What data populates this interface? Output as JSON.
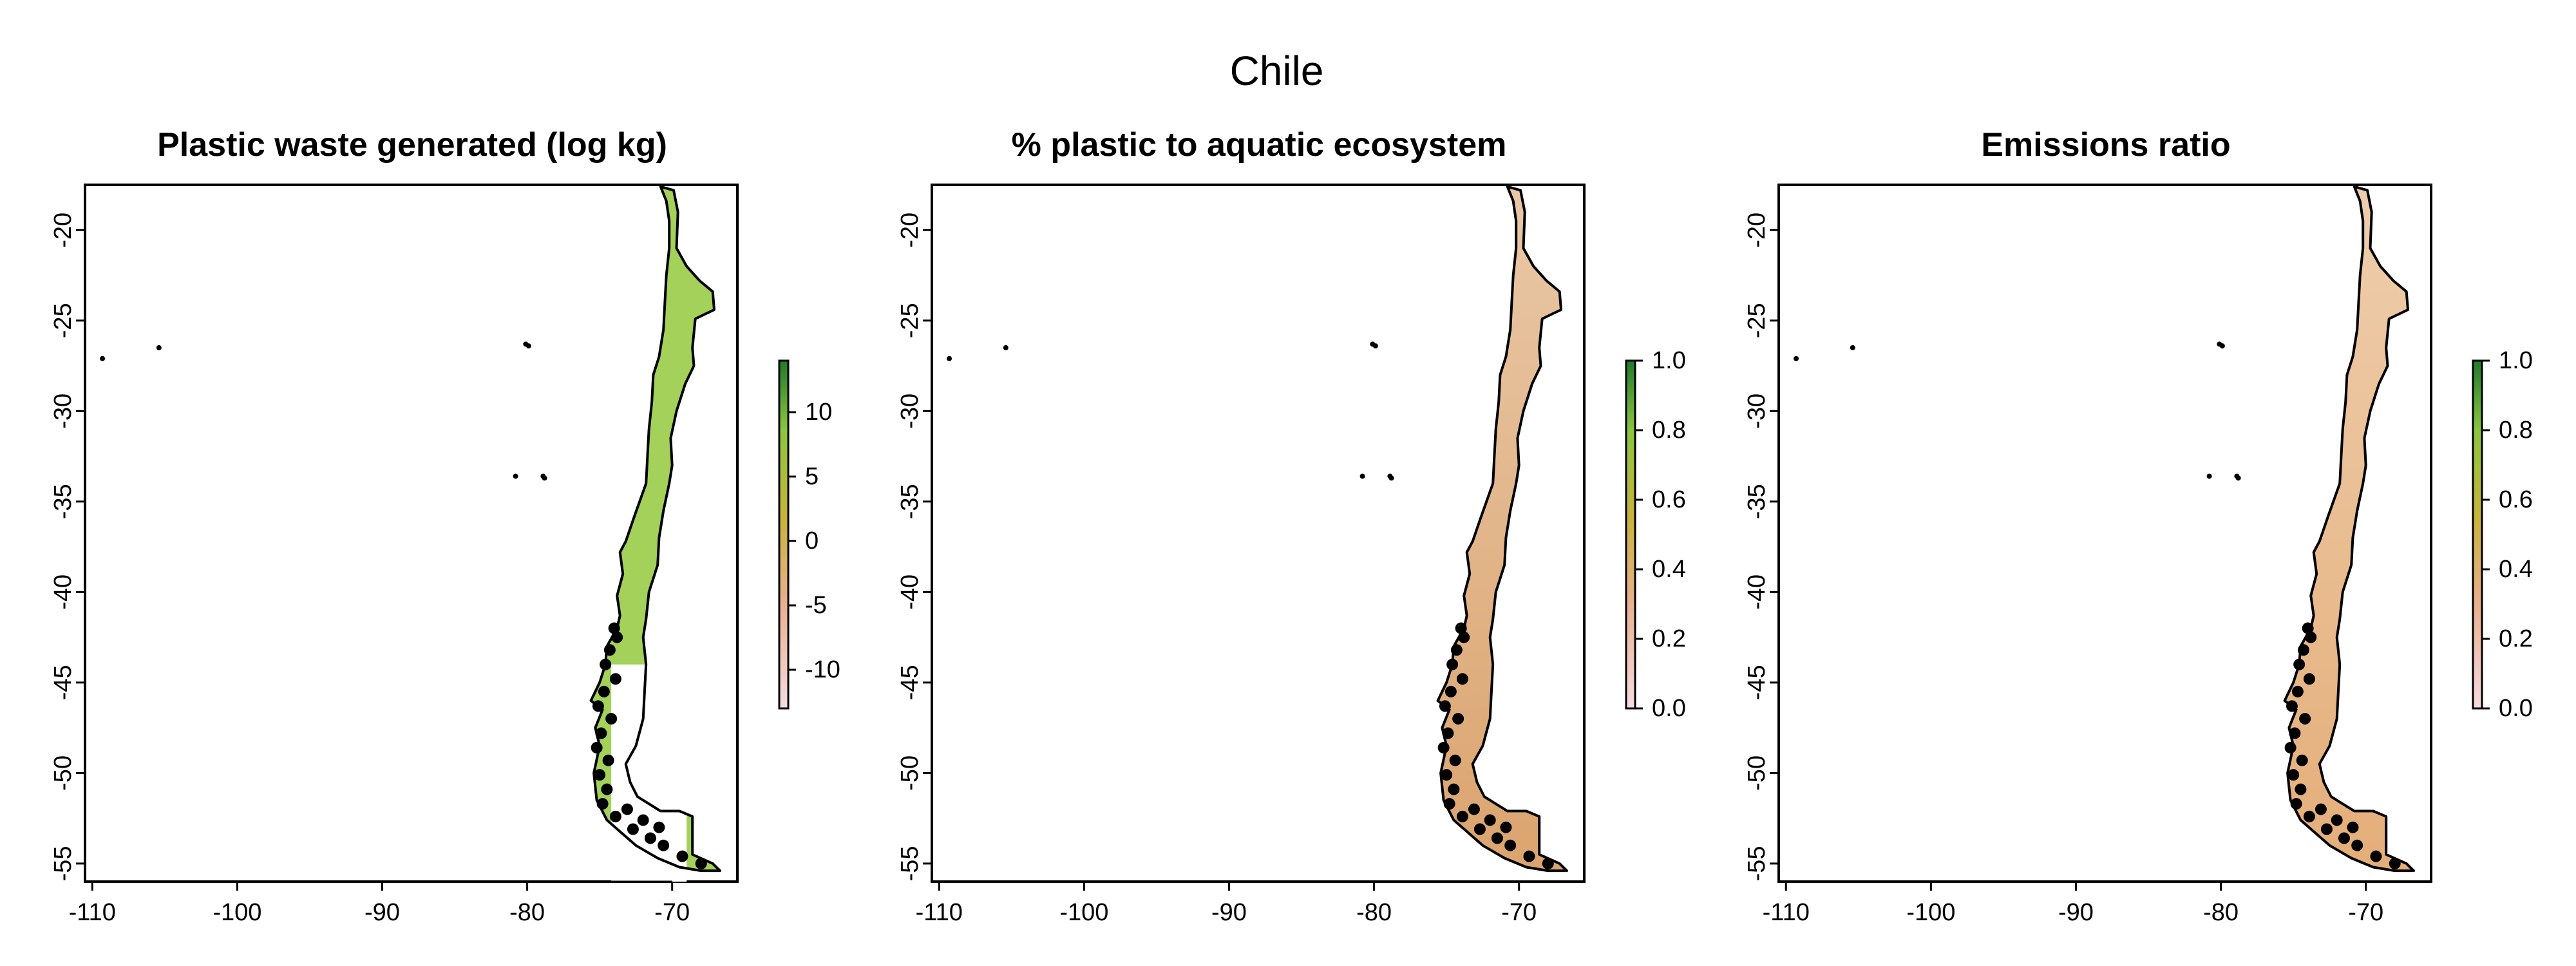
{
  "figure": {
    "title": "Chile"
  },
  "colors": {
    "outline": "#000000",
    "colorbar_low": "#f6dbe0",
    "colorbar_mid_low": "#e9b08f",
    "colorbar_mid": "#c8b33b",
    "colorbar_high": "#8bc53f",
    "colorbar_top": "#1f7a2a",
    "panel1_fill": "#93c93d",
    "panel2_fill": "#d79a5f",
    "panel3_fill": "#e1a56a"
  },
  "panels": [
    {
      "title": "Plastic waste generated (log kg)",
      "legend": {
        "ticks": [
          "10",
          "5",
          "0",
          "-5",
          "-10"
        ],
        "values": [
          10,
          5,
          0,
          -5,
          -10
        ],
        "range": [
          -13,
          14
        ]
      }
    },
    {
      "title": "% plastic to aquatic ecosystem",
      "legend": {
        "ticks": [
          "1.0",
          "0.8",
          "0.6",
          "0.4",
          "0.2",
          "0.0"
        ],
        "values": [
          1.0,
          0.8,
          0.6,
          0.4,
          0.2,
          0.0
        ],
        "range": [
          0,
          1
        ]
      }
    },
    {
      "title": "Emissions ratio",
      "legend": {
        "ticks": [
          "1.0",
          "0.8",
          "0.6",
          "0.4",
          "0.2",
          "0.0"
        ],
        "values": [
          1.0,
          0.8,
          0.6,
          0.4,
          0.2,
          0.0
        ],
        "range": [
          0,
          1
        ]
      }
    }
  ],
  "axes": {
    "x_ticks": [
      "-110",
      "-100",
      "-90",
      "-80",
      "-70"
    ],
    "x_values": [
      -110,
      -100,
      -90,
      -80,
      -70
    ],
    "y_ticks": [
      "-20",
      "-25",
      "-30",
      "-35",
      "-40",
      "-45",
      "-50",
      "-55"
    ],
    "y_values": [
      -20,
      -25,
      -30,
      -35,
      -40,
      -45,
      -50,
      -55
    ],
    "x_range": [
      -110.5,
      -65.5
    ],
    "y_range": [
      -56,
      -17.5
    ]
  }
}
